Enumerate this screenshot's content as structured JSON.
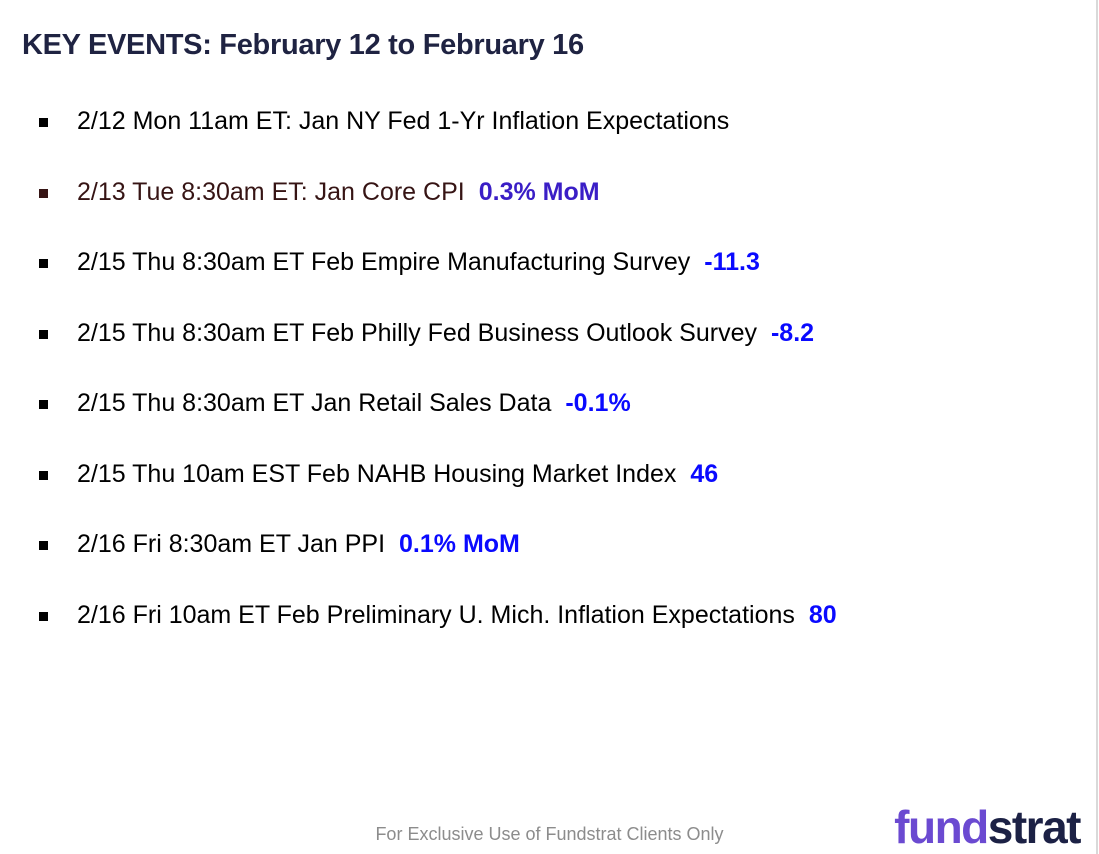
{
  "title": "KEY EVENTS: February 12 to February 16",
  "events": [
    {
      "label": "2/12 Mon 11am ET: Jan NY Fed 1-Yr Inflation Expectations",
      "value": "",
      "highlighted": false
    },
    {
      "label": "2/13 Tue 8:30am ET: Jan Core CPI",
      "value": "0.3% MoM",
      "highlighted": true
    },
    {
      "label": "2/15 Thu 8:30am ET Feb Empire Manufacturing Survey",
      "value": "-11.3",
      "highlighted": false
    },
    {
      "label": "2/15 Thu 8:30am ET Feb Philly Fed Business Outlook Survey",
      "value": "-8.2",
      "highlighted": false
    },
    {
      "label": "2/15 Thu 8:30am ET Jan Retail Sales Data",
      "value": "-0.1%",
      "highlighted": false
    },
    {
      "label": "2/15 Thu 10am EST Feb NAHB Housing Market Index",
      "value": "46",
      "highlighted": false
    },
    {
      "label": "2/16 Fri 8:30am ET Jan PPI",
      "value": "0.1% MoM",
      "highlighted": false
    },
    {
      "label": "2/16 Fri 10am ET Feb Preliminary U. Mich. Inflation Expectations",
      "value": "80",
      "highlighted": false
    }
  ],
  "footer": {
    "disclaimer": "For Exclusive Use of Fundstrat Clients Only"
  },
  "logo": {
    "part1": "fund",
    "part2": "strat"
  },
  "colors": {
    "title_navy": "#1f2342",
    "text_black": "#000000",
    "highlight_bg": "#fcd0cd",
    "highlight_text": "#361414",
    "highlight_value": "#3a1ec6",
    "value_blue": "#0a0aff",
    "footer_gray": "#8c8c8c",
    "logo_purple": "#6b4ad1",
    "logo_navy": "#1c2145",
    "edge_line": "#d9d9d9"
  }
}
